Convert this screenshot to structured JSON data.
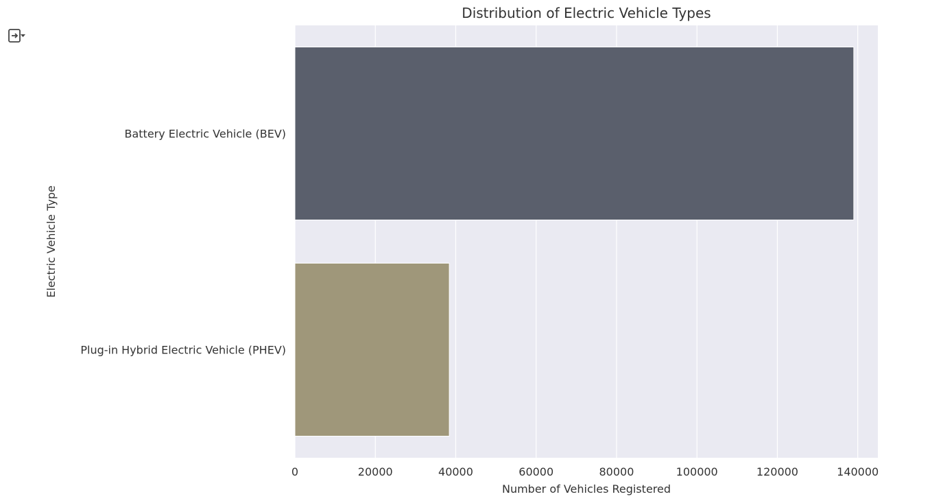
{
  "toolbar": {
    "output_icon": "output-toggle-icon"
  },
  "chart_data": {
    "type": "bar",
    "orientation": "horizontal",
    "title": "Distribution of Electric Vehicle Types",
    "xlabel": "Number of Vehicles Registered",
    "ylabel": "Electric Vehicle Type",
    "categories": [
      "Battery Electric Vehicle (BEV)",
      "Plug-in Hybrid Electric Vehicle (PHEV)"
    ],
    "values": [
      139000,
      38400
    ],
    "colors": [
      "#5a5f6c",
      "#9f977a"
    ],
    "xlim": [
      0,
      145000
    ],
    "xticks": [
      0,
      20000,
      40000,
      60000,
      80000,
      100000,
      120000,
      140000
    ],
    "grid": true,
    "background": "#eaeaf2"
  }
}
